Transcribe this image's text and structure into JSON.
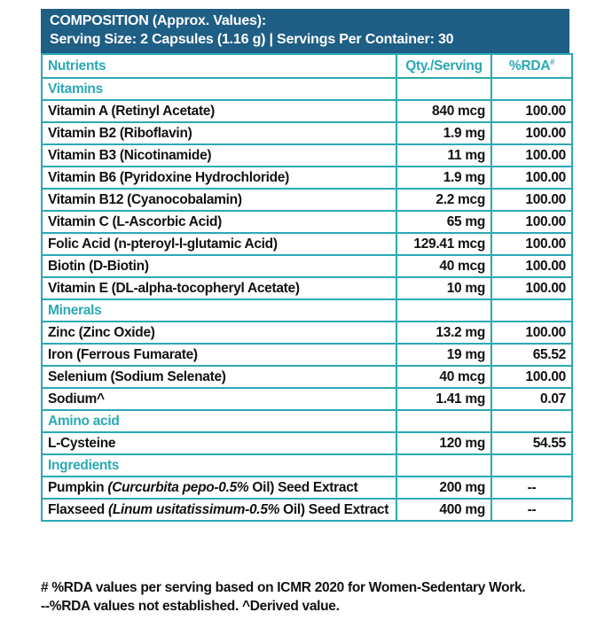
{
  "header": {
    "line1": "COMPOSITION (Approx. Values):",
    "line2": "Serving Size: 2 Capsules (1.16 g) | Servings Per Container: 30"
  },
  "columns": {
    "nutrients": "Nutrients",
    "qty": "Qty./Serving",
    "rda": "%RDA",
    "rda_mark": "#"
  },
  "sections": {
    "vitamins": "Vitamins",
    "minerals": "Minerals",
    "amino": "Amino acid",
    "ingredients": "Ingredients"
  },
  "vitamins": [
    {
      "name": "Vitamin A (Retinyl Acetate)",
      "qty": "840 mcg",
      "rda": "100.00"
    },
    {
      "name": "Vitamin B2 (Riboflavin)",
      "qty": "1.9 mg",
      "rda": "100.00"
    },
    {
      "name": "Vitamin B3 (Nicotinamide)",
      "qty": "11 mg",
      "rda": "100.00"
    },
    {
      "name": "Vitamin B6 (Pyridoxine Hydrochloride)",
      "qty": "1.9 mg",
      "rda": "100.00"
    },
    {
      "name": "Vitamin B12 (Cyanocobalamin)",
      "qty": "2.2 mcg",
      "rda": "100.00"
    },
    {
      "name": "Vitamin C (L-Ascorbic Acid)",
      "qty": "65 mg",
      "rda": "100.00"
    },
    {
      "name": "Folic Acid (n-pteroyl-l-glutamic Acid)",
      "qty": "129.41 mcg",
      "rda": "100.00"
    },
    {
      "name": "Biotin (D-Biotin)",
      "qty": "40 mcg",
      "rda": "100.00"
    },
    {
      "name": "Vitamin E (DL-alpha-tocopheryl Acetate)",
      "qty": "10 mg",
      "rda": "100.00"
    }
  ],
  "minerals": [
    {
      "name": "Zinc (Zinc Oxide)",
      "qty": "13.2 mg",
      "rda": "100.00"
    },
    {
      "name": "Iron (Ferrous Fumarate)",
      "qty": "19 mg",
      "rda": "65.52"
    },
    {
      "name": "Selenium (Sodium Selenate)",
      "qty": "40 mcg",
      "rda": "100.00"
    },
    {
      "name": "Sodium^",
      "qty": "1.41 mg",
      "rda": "0.07"
    }
  ],
  "amino": [
    {
      "name": "L-Cysteine",
      "qty": "120 mg",
      "rda": "54.55"
    }
  ],
  "ingredients": [
    {
      "pre": "Pumpkin ",
      "latin": "(Curcurbita pepo-0.5%",
      "post": " Oil) Seed Extract",
      "qty": "200 mg",
      "rda": "--"
    },
    {
      "pre": "Flaxseed ",
      "latin": "(Linum usitatissimum-0.5%",
      "post": " Oil) Seed Extract",
      "qty": "400 mg",
      "rda": "--"
    }
  ],
  "footer": {
    "line1": "# %RDA values per serving based on ICMR 2020 for Women-Sedentary Work.",
    "line2": "--%RDA values not established. ^Derived value."
  }
}
